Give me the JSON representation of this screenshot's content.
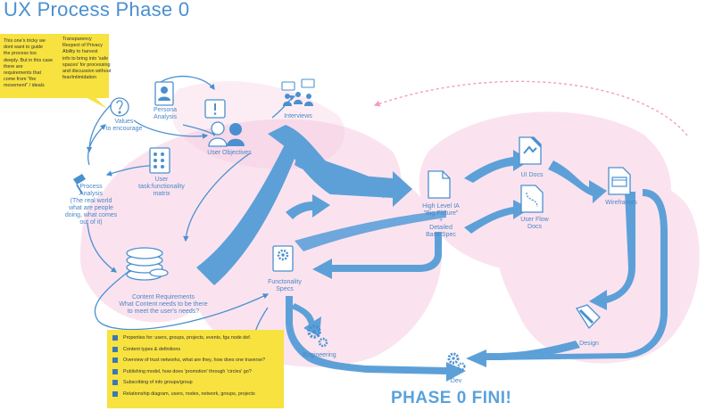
{
  "title": "UX Process Phase 0",
  "sticky_left": {
    "left_text": "This one's tricky we\ndont want to guide\nthe process too\ndeeply. But in this case\nthere are\nrequirements that\ncome from \"the\nmovement\" / ideals",
    "right_text": "Transparency\nRespect of Privacy\nAbility to harvest\ninfo to bring into 'safe\nspaces' for processing\nand discussion without\nfear/intimidation"
  },
  "sticky_bottom": {
    "items": [
      "Properties for: users, groups, projects, events, fga node def.",
      "Content types & definitions",
      "Overview of trust networks, what are they, how does one traverse?",
      "Publishing model, how does 'promotion' through 'circles' go?",
      "Subscribing of info groups/group",
      "Relationship diagram, users, nodes, network, groups, projects"
    ]
  },
  "nodes": {
    "values": "Values\nto encourage",
    "persona": "Persona\nAnalysis",
    "interviews": "Interviews",
    "user_objectives": "User Objectives",
    "process_analysis": "Process\nAnalysis\n(The real world\nwhat are people\ndoing, what comes\nout of it)",
    "user_task_matrix": "User\ntask:functionality\nmatrix",
    "content_requirements": "Content Requirements\nWhat Content needs to be there\nto meet the user's needs?",
    "functionality_specs": "Functonality\nSpecs",
    "engineering": "Engineering",
    "high_level_ia": "High Level IA\n\"Big Picture\"\n+\nDetailed\nBase Spec",
    "ui_docs": "UI Docs",
    "user_flow_docs": "User Flow\nDocs",
    "wireframes": "Wireframes",
    "design": "Design",
    "dev": "Dev"
  },
  "finale": "PHASE 0 FINI!",
  "colors": {
    "blue": "#4a90d0",
    "arrow": "#5da0d8",
    "pink": "#f2c4dc",
    "yellow": "#f7e23f"
  }
}
